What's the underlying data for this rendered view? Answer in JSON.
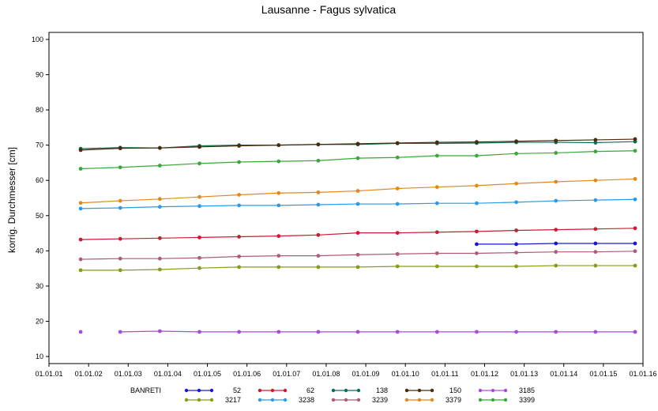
{
  "chart_data": {
    "type": "line",
    "title": "Lausanne - Fagus sylvatica",
    "xlabel": "",
    "ylabel": "korrig. Durchmesser [cm]",
    "x_ticks": [
      "01.01.01",
      "01.01.02",
      "01.01.03",
      "01.01.04",
      "01.01.05",
      "01.01.06",
      "01.01.07",
      "01.01.08",
      "01.01.09",
      "01.01.10",
      "01.01.11",
      "01.01.12",
      "01.01.13",
      "01.01.14",
      "01.01.15",
      "01.01.16"
    ],
    "x_range": [
      2001,
      2016
    ],
    "ylim": [
      8,
      102
    ],
    "y_ticks": [
      10,
      20,
      30,
      40,
      50,
      60,
      70,
      80,
      90,
      100
    ],
    "grid": false,
    "legend_title": "BANRETI",
    "legend_position": "bottom",
    "series": [
      {
        "name": "52",
        "color": "#1a1acc",
        "x": [
          2011.8,
          2012.8,
          2013.8,
          2014.8,
          2015.8
        ],
        "y": [
          41.9,
          41.9,
          42.1,
          42.1,
          42.1
        ]
      },
      {
        "name": "62",
        "color": "#cc1a33",
        "x": [
          2001.8,
          2002.8,
          2003.8,
          2004.8,
          2005.8,
          2006.8,
          2007.8,
          2008.8,
          2009.8,
          2010.8,
          2011.8,
          2012.8,
          2013.8,
          2014.8,
          2015.8
        ],
        "y": [
          43.2,
          43.4,
          43.6,
          43.8,
          44.0,
          44.2,
          44.5,
          45.1,
          45.1,
          45.3,
          45.5,
          45.8,
          46.0,
          46.2,
          46.4
        ]
      },
      {
        "name": "138",
        "color": "#0f6b5a",
        "x": [
          2001.8,
          2002.8,
          2003.8,
          2004.8,
          2005.8,
          2006.8,
          2007.8,
          2008.8,
          2009.8,
          2010.8,
          2011.8,
          2012.8,
          2013.8,
          2014.8,
          2015.8
        ],
        "y": [
          69.0,
          69.3,
          69.2,
          69.8,
          70.0,
          70.0,
          70.2,
          70.2,
          70.5,
          70.5,
          70.6,
          70.8,
          70.8,
          70.7,
          71.0
        ]
      },
      {
        "name": "150",
        "color": "#4a2a0a",
        "x": [
          2001.8,
          2002.8,
          2003.8,
          2004.8,
          2005.8,
          2006.8,
          2007.8,
          2008.8,
          2009.8,
          2010.8,
          2011.8,
          2012.8,
          2013.8,
          2014.8,
          2015.8
        ],
        "y": [
          68.6,
          69.1,
          69.2,
          69.5,
          69.8,
          70.0,
          70.2,
          70.4,
          70.6,
          70.8,
          70.9,
          71.1,
          71.3,
          71.5,
          71.7
        ]
      },
      {
        "name": "3185",
        "color": "#a64dd9",
        "x": [
          2001.8,
          2002.8,
          2003.8,
          2004.8,
          2005.8,
          2006.8,
          2007.8,
          2008.8,
          2009.8,
          2010.8,
          2011.8,
          2012.8,
          2013.8,
          2014.8,
          2015.8
        ],
        "y": [
          17.0,
          17.0,
          17.2,
          17.0,
          17.0,
          17.0,
          17.0,
          17.0,
          17.0,
          17.0,
          17.0,
          17.0,
          17.0,
          17.0,
          17.0
        ],
        "gap_after_index": 0
      },
      {
        "name": "3217",
        "color": "#8a9a1a",
        "x": [
          2001.8,
          2002.8,
          2003.8,
          2004.8,
          2005.8,
          2006.8,
          2007.8,
          2008.8,
          2009.8,
          2010.8,
          2011.8,
          2012.8,
          2013.8,
          2014.8,
          2015.8
        ],
        "y": [
          34.5,
          34.5,
          34.7,
          35.1,
          35.4,
          35.4,
          35.4,
          35.4,
          35.6,
          35.6,
          35.6,
          35.6,
          35.8,
          35.8,
          35.8
        ]
      },
      {
        "name": "3238",
        "color": "#2b9be6",
        "x": [
          2001.8,
          2002.8,
          2003.8,
          2004.8,
          2005.8,
          2006.8,
          2007.8,
          2008.8,
          2009.8,
          2010.8,
          2011.8,
          2012.8,
          2013.8,
          2014.8,
          2015.8
        ],
        "y": [
          52.0,
          52.2,
          52.5,
          52.7,
          52.9,
          52.9,
          53.1,
          53.3,
          53.3,
          53.5,
          53.5,
          53.8,
          54.2,
          54.4,
          54.6
        ]
      },
      {
        "name": "3239",
        "color": "#b05a7a",
        "x": [
          2001.8,
          2002.8,
          2003.8,
          2004.8,
          2005.8,
          2006.8,
          2007.8,
          2008.8,
          2009.8,
          2010.8,
          2011.8,
          2012.8,
          2013.8,
          2014.8,
          2015.8
        ],
        "y": [
          37.6,
          37.8,
          37.8,
          38.0,
          38.4,
          38.6,
          38.6,
          38.9,
          39.1,
          39.3,
          39.3,
          39.5,
          39.7,
          39.7,
          39.9
        ]
      },
      {
        "name": "3379",
        "color": "#e08a1a",
        "x": [
          2001.8,
          2002.8,
          2003.8,
          2004.8,
          2005.8,
          2006.8,
          2007.8,
          2008.8,
          2009.8,
          2010.8,
          2011.8,
          2012.8,
          2013.8,
          2014.8,
          2015.8
        ],
        "y": [
          53.6,
          54.2,
          54.7,
          55.3,
          55.9,
          56.4,
          56.6,
          57.0,
          57.7,
          58.1,
          58.5,
          59.1,
          59.6,
          60.0,
          60.4
        ]
      },
      {
        "name": "3399",
        "color": "#3aa83a",
        "x": [
          2001.8,
          2002.8,
          2003.8,
          2004.8,
          2005.8,
          2006.8,
          2007.8,
          2008.8,
          2009.8,
          2010.8,
          2011.8,
          2012.8,
          2013.8,
          2014.8,
          2015.8
        ],
        "y": [
          63.3,
          63.7,
          64.2,
          64.8,
          65.2,
          65.4,
          65.6,
          66.3,
          66.5,
          67.0,
          67.0,
          67.6,
          67.8,
          68.2,
          68.4
        ]
      }
    ]
  }
}
